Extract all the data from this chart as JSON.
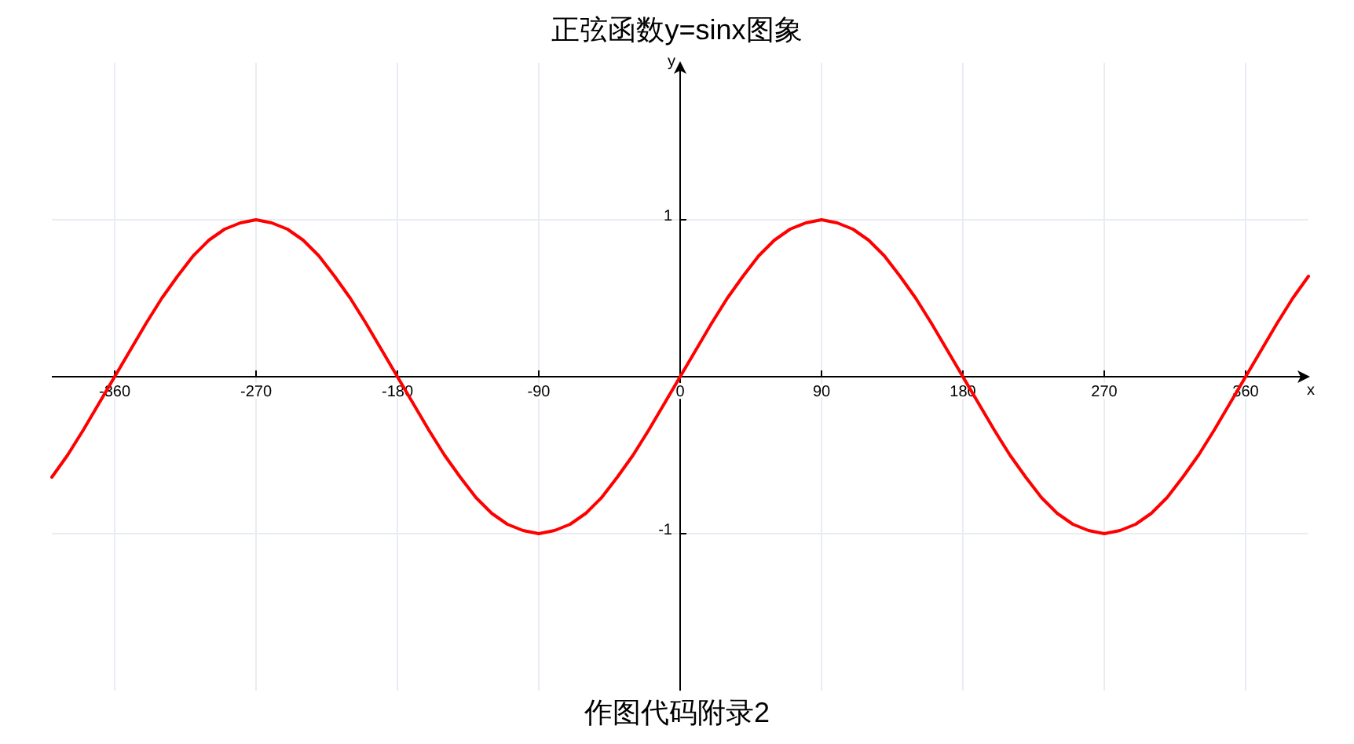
{
  "chart_data": {
    "type": "line",
    "title": "正弦函数y=sinx图象",
    "xlabel": "x",
    "ylabel": "y",
    "annotations": [
      "作图代码附录2"
    ],
    "x": [
      -400,
      -390,
      -380,
      -370,
      -360,
      -350,
      -340,
      -330,
      -320,
      -310,
      -300,
      -290,
      -280,
      -270,
      -260,
      -250,
      -240,
      -230,
      -220,
      -210,
      -200,
      -190,
      -180,
      -170,
      -160,
      -150,
      -140,
      -130,
      -120,
      -110,
      -100,
      -90,
      -80,
      -70,
      -60,
      -50,
      -40,
      -30,
      -20,
      -10,
      0,
      10,
      20,
      30,
      40,
      50,
      60,
      70,
      80,
      90,
      100,
      110,
      120,
      130,
      140,
      150,
      160,
      170,
      180,
      190,
      200,
      210,
      220,
      230,
      240,
      250,
      260,
      270,
      280,
      290,
      300,
      310,
      320,
      330,
      340,
      350,
      360,
      370,
      380,
      390,
      400
    ],
    "series": [
      {
        "color": "#ff0000",
        "values": [
          -0.64,
          -0.5,
          -0.34,
          -0.17,
          0,
          0.17,
          0.34,
          0.5,
          0.64,
          0.77,
          0.87,
          0.94,
          0.98,
          1,
          0.98,
          0.94,
          0.87,
          0.77,
          0.64,
          0.5,
          0.34,
          0.17,
          0,
          -0.17,
          -0.34,
          -0.5,
          -0.64,
          -0.77,
          -0.87,
          -0.94,
          -0.98,
          -1,
          -0.98,
          -0.94,
          -0.87,
          -0.77,
          -0.64,
          -0.5,
          -0.34,
          -0.17,
          0,
          0.17,
          0.34,
          0.5,
          0.64,
          0.77,
          0.87,
          0.94,
          0.98,
          1,
          0.98,
          0.94,
          0.87,
          0.77,
          0.64,
          0.5,
          0.34,
          0.17,
          0,
          -0.17,
          -0.34,
          -0.5,
          -0.64,
          -0.77,
          -0.87,
          -0.94,
          -0.98,
          -1,
          -0.98,
          -0.94,
          -0.87,
          -0.77,
          -0.64,
          -0.5,
          -0.34,
          -0.17,
          0,
          0.17,
          0.34,
          0.5,
          0.64
        ]
      }
    ],
    "xlim": [
      -400,
      400
    ],
    "ylim": [
      -2,
      2
    ],
    "xticks": [
      -360,
      -270,
      -180,
      -90,
      0,
      90,
      180,
      270,
      360
    ],
    "yticks": [
      -1,
      1
    ],
    "grid": true,
    "marker": "none",
    "line_style": "solid"
  }
}
